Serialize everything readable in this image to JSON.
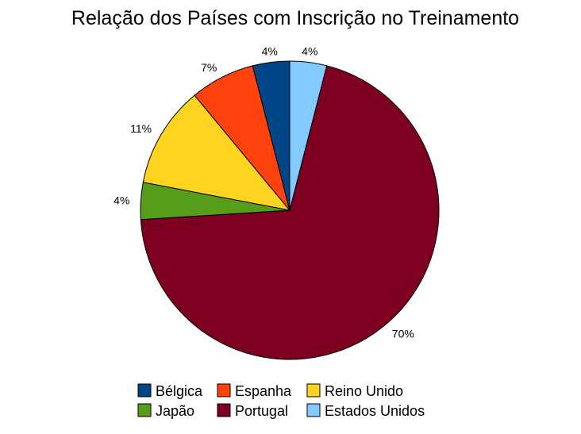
{
  "chart_data": {
    "type": "pie",
    "title": "Relação dos Países com Inscrição no Treinamento",
    "slices": [
      {
        "name": "Estados Unidos",
        "value": 4,
        "label": "4%",
        "color": "#83caff"
      },
      {
        "name": "Portugal",
        "value": 70,
        "label": "70%",
        "color": "#7e0021"
      },
      {
        "name": "Japão",
        "value": 4,
        "label": "4%",
        "color": "#579d1c"
      },
      {
        "name": "Reino Unido",
        "value": 11,
        "label": "11%",
        "color": "#ffd320"
      },
      {
        "name": "Espanha",
        "value": 7,
        "label": "7%",
        "color": "#ff420e"
      },
      {
        "name": "Bélgica",
        "value": 4,
        "label": "4%",
        "color": "#004586"
      }
    ],
    "start_angle_deg": 0,
    "direction": "clockwise",
    "legend": {
      "position": "bottom",
      "items": [
        {
          "name": "Bélgica",
          "color": "#004586"
        },
        {
          "name": "Espanha",
          "color": "#ff420e"
        },
        {
          "name": "Reino Unido",
          "color": "#ffd320"
        },
        {
          "name": "Japão",
          "color": "#579d1c"
        },
        {
          "name": "Portugal",
          "color": "#7e0021"
        },
        {
          "name": "Estados Unidos",
          "color": "#83caff"
        }
      ]
    }
  }
}
